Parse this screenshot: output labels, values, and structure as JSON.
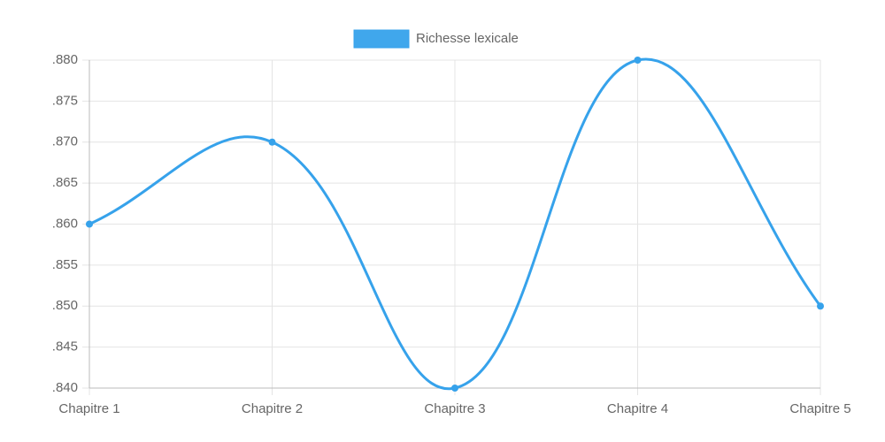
{
  "chart_data": {
    "type": "line",
    "categories": [
      "Chapitre 1",
      "Chapitre 2",
      "Chapitre 3",
      "Chapitre 4",
      "Chapitre 5"
    ],
    "series": [
      {
        "name": "Richesse lexicale",
        "color": "#36a2eb",
        "values": [
          0.86,
          0.87,
          0.84,
          0.88,
          0.85
        ]
      }
    ],
    "ylim": [
      0.84,
      0.88
    ],
    "yticks": [
      {
        "value": 0.84,
        "label": ".840"
      },
      {
        "value": 0.845,
        "label": ".845"
      },
      {
        "value": 0.85,
        "label": ".850"
      },
      {
        "value": 0.855,
        "label": ".855"
      },
      {
        "value": 0.86,
        "label": ".860"
      },
      {
        "value": 0.865,
        "label": ".865"
      },
      {
        "value": 0.87,
        "label": ".870"
      },
      {
        "value": 0.875,
        "label": ".875"
      },
      {
        "value": 0.88,
        "label": ".880"
      }
    ],
    "grid": true,
    "legend": "top"
  }
}
